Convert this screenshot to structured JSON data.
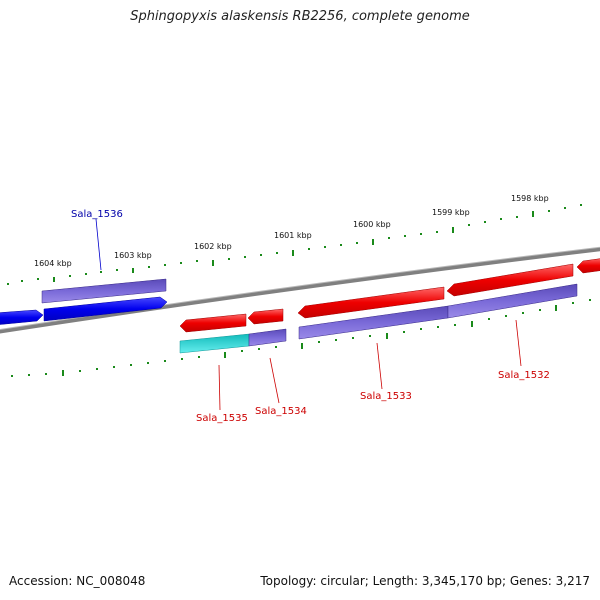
{
  "title": "Sphingopyxis alaskensis RB2256, complete genome",
  "footer": {
    "accession": "Accession: NC_008048",
    "summary": "Topology: circular; Length: 3,345,170 bp; Genes: 3,217"
  },
  "colors": {
    "forward_gene": "#0000ee",
    "reverse_gene": "#ee0000",
    "cds": "#6a5acd",
    "rna": "#22cccc",
    "backbone": "#808080",
    "ticks": "#1a8a1a"
  },
  "kbp_labels": [
    "1604 kbp",
    "1603 kbp",
    "1602 kbp",
    "1601 kbp",
    "1600 kbp",
    "1599 kbp",
    "1598 kbp"
  ],
  "gene_labels": [
    {
      "name": "Sala_1536",
      "strand": "forward"
    },
    {
      "name": "Sala_1535",
      "strand": "reverse"
    },
    {
      "name": "Sala_1534",
      "strand": "reverse"
    },
    {
      "name": "Sala_1533",
      "strand": "reverse"
    },
    {
      "name": "Sala_1532",
      "strand": "reverse"
    }
  ]
}
